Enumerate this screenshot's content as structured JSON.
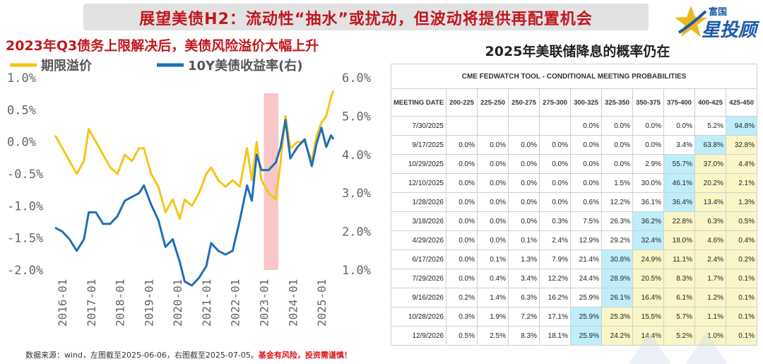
{
  "banner": {
    "title": "展望美债H2：流动性“抽水”或扰动，但波动将提供再配置机会"
  },
  "logo": {
    "small": "富国",
    "big": "星投顾"
  },
  "left_chart": {
    "title": "2023年Q3债务上限解决后，美债风险溢价大幅上升"
  },
  "chart_data": {
    "type": "line",
    "title": "2023年Q3债务上限解决后，美债风险溢价大幅上升",
    "x_ticks": [
      "2016-01",
      "2017-01",
      "2018-01",
      "2019-01",
      "2020-01",
      "2021-01",
      "2022-01",
      "2023-01",
      "2024-01",
      "2025-01"
    ],
    "x_range": [
      "2015-10",
      "2025-06"
    ],
    "y_left": {
      "ticks": [
        "1.0%",
        "0.5%",
        "0.0%",
        "-0.5%",
        "-1.0%",
        "-1.5%",
        "-2.0%"
      ],
      "range": [
        -2.0,
        1.0
      ]
    },
    "y_right": {
      "ticks": [
        "6.0%",
        "5.0%",
        "4.0%",
        "3.0%",
        "2.0%",
        "1.0%"
      ],
      "range": [
        1.0,
        6.0
      ]
    },
    "highlight_band": {
      "from": "2023-01",
      "to": "2023-07",
      "color": "#f7c6c6"
    },
    "colors": {
      "term_premium": "#f5c518",
      "yield_10y": "#1f6fb5"
    },
    "series": [
      {
        "name": "期限溢价",
        "axis": "left",
        "points": [
          [
            "2015-10",
            0.1
          ],
          [
            "2016-01",
            -0.1
          ],
          [
            "2016-04",
            -0.3
          ],
          [
            "2016-07",
            -0.5
          ],
          [
            "2016-10",
            -0.3
          ],
          [
            "2016-12",
            0.2
          ],
          [
            "2017-03",
            0.0
          ],
          [
            "2017-06",
            -0.2
          ],
          [
            "2017-09",
            -0.4
          ],
          [
            "2017-12",
            -0.5
          ],
          [
            "2018-03",
            -0.2
          ],
          [
            "2018-06",
            -0.3
          ],
          [
            "2018-09",
            -0.1
          ],
          [
            "2018-11",
            -0.1
          ],
          [
            "2019-02",
            -0.5
          ],
          [
            "2019-05",
            -0.7
          ],
          [
            "2019-08",
            -1.1
          ],
          [
            "2019-11",
            -0.9
          ],
          [
            "2020-02",
            -1.2
          ],
          [
            "2020-04",
            -0.9
          ],
          [
            "2020-07",
            -1.0
          ],
          [
            "2020-10",
            -0.8
          ],
          [
            "2021-01",
            -0.5
          ],
          [
            "2021-03",
            -0.4
          ],
          [
            "2021-06",
            -0.6
          ],
          [
            "2021-09",
            -0.7
          ],
          [
            "2021-12",
            -0.6
          ],
          [
            "2022-03",
            -0.7
          ],
          [
            "2022-06",
            -0.1
          ],
          [
            "2022-08",
            -0.6
          ],
          [
            "2022-10",
            0.0
          ],
          [
            "2022-12",
            -0.6
          ],
          [
            "2023-03",
            -0.8
          ],
          [
            "2023-06",
            -0.9
          ],
          [
            "2023-08",
            -0.3
          ],
          [
            "2023-10",
            0.4
          ],
          [
            "2023-12",
            -0.1
          ],
          [
            "2024-03",
            0.0
          ],
          [
            "2024-06",
            0.0
          ],
          [
            "2024-09",
            -0.3
          ],
          [
            "2024-11",
            0.1
          ],
          [
            "2025-01",
            0.3
          ],
          [
            "2025-03",
            0.4
          ],
          [
            "2025-05",
            0.7
          ],
          [
            "2025-06",
            0.8
          ]
        ]
      },
      {
        "name": "10Y美债收益率(右)",
        "axis": "right",
        "points": [
          [
            "2015-10",
            2.1
          ],
          [
            "2016-01",
            2.0
          ],
          [
            "2016-04",
            1.8
          ],
          [
            "2016-07",
            1.5
          ],
          [
            "2016-10",
            1.8
          ],
          [
            "2016-12",
            2.5
          ],
          [
            "2017-03",
            2.5
          ],
          [
            "2017-06",
            2.2
          ],
          [
            "2017-09",
            2.2
          ],
          [
            "2017-12",
            2.4
          ],
          [
            "2018-03",
            2.8
          ],
          [
            "2018-06",
            2.9
          ],
          [
            "2018-09",
            3.0
          ],
          [
            "2018-11",
            3.2
          ],
          [
            "2019-02",
            2.7
          ],
          [
            "2019-05",
            2.3
          ],
          [
            "2019-08",
            1.6
          ],
          [
            "2019-11",
            1.8
          ],
          [
            "2020-02",
            1.2
          ],
          [
            "2020-04",
            0.7
          ],
          [
            "2020-07",
            0.6
          ],
          [
            "2020-10",
            0.8
          ],
          [
            "2021-01",
            1.1
          ],
          [
            "2021-03",
            1.7
          ],
          [
            "2021-06",
            1.5
          ],
          [
            "2021-09",
            1.4
          ],
          [
            "2021-12",
            1.5
          ],
          [
            "2022-03",
            2.3
          ],
          [
            "2022-06",
            3.2
          ],
          [
            "2022-08",
            2.8
          ],
          [
            "2022-10",
            4.0
          ],
          [
            "2022-12",
            3.6
          ],
          [
            "2023-03",
            3.6
          ],
          [
            "2023-06",
            3.8
          ],
          [
            "2023-08",
            4.2
          ],
          [
            "2023-10",
            4.9
          ],
          [
            "2023-12",
            3.9
          ],
          [
            "2024-03",
            4.2
          ],
          [
            "2024-06",
            4.4
          ],
          [
            "2024-09",
            3.7
          ],
          [
            "2024-11",
            4.3
          ],
          [
            "2025-01",
            4.7
          ],
          [
            "2025-03",
            4.2
          ],
          [
            "2025-05",
            4.5
          ],
          [
            "2025-06",
            4.4
          ]
        ]
      }
    ]
  },
  "right_table": {
    "title": "2025年美联储降息的概率仍在",
    "tool_title": "CME FEDWATCH TOOL - CONDITIONAL MEETING PROBABILITIES",
    "date_header": "MEETING DATE",
    "columns": [
      "200-225",
      "225-250",
      "250-275",
      "275-300",
      "300-325",
      "325-350",
      "350-375",
      "375-400",
      "400-425",
      "425-450"
    ],
    "rows": [
      {
        "date": "7/30/2025",
        "cells": [
          {
            "v": "",
            "c": "w"
          },
          {
            "v": "",
            "c": "w"
          },
          {
            "v": "",
            "c": "w"
          },
          {
            "v": "",
            "c": "w"
          },
          {
            "v": "0.0%",
            "c": "w"
          },
          {
            "v": "0.0%",
            "c": "w"
          },
          {
            "v": "0.0%",
            "c": "w"
          },
          {
            "v": "0.0%",
            "c": "w"
          },
          {
            "v": "5.2%",
            "c": "w"
          },
          {
            "v": "94.8%",
            "c": "b"
          }
        ]
      },
      {
        "date": "9/17/2025",
        "cells": [
          {
            "v": "0.0%",
            "c": "w"
          },
          {
            "v": "0.0%",
            "c": "w"
          },
          {
            "v": "0.0%",
            "c": "w"
          },
          {
            "v": "0.0%",
            "c": "w"
          },
          {
            "v": "0.0%",
            "c": "w"
          },
          {
            "v": "0.0%",
            "c": "w"
          },
          {
            "v": "0.0%",
            "c": "w"
          },
          {
            "v": "3.4%",
            "c": "w"
          },
          {
            "v": "63.8%",
            "c": "b"
          },
          {
            "v": "32.8%",
            "c": "y"
          }
        ]
      },
      {
        "date": "10/29/2025",
        "cells": [
          {
            "v": "0.0%",
            "c": "w"
          },
          {
            "v": "0.0%",
            "c": "w"
          },
          {
            "v": "0.0%",
            "c": "w"
          },
          {
            "v": "0.0%",
            "c": "w"
          },
          {
            "v": "0.0%",
            "c": "w"
          },
          {
            "v": "0.0%",
            "c": "w"
          },
          {
            "v": "2.9%",
            "c": "w"
          },
          {
            "v": "55.7%",
            "c": "b"
          },
          {
            "v": "37.0%",
            "c": "y"
          },
          {
            "v": "4.4%",
            "c": "y"
          }
        ]
      },
      {
        "date": "12/10/2025",
        "cells": [
          {
            "v": "0.0%",
            "c": "w"
          },
          {
            "v": "0.0%",
            "c": "w"
          },
          {
            "v": "0.0%",
            "c": "w"
          },
          {
            "v": "0.0%",
            "c": "w"
          },
          {
            "v": "0.0%",
            "c": "w"
          },
          {
            "v": "1.5%",
            "c": "w"
          },
          {
            "v": "30.0%",
            "c": "w"
          },
          {
            "v": "46.1%",
            "c": "b"
          },
          {
            "v": "20.2%",
            "c": "y"
          },
          {
            "v": "2.1%",
            "c": "y"
          }
        ]
      },
      {
        "date": "1/28/2026",
        "cells": [
          {
            "v": "0.0%",
            "c": "w"
          },
          {
            "v": "0.0%",
            "c": "w"
          },
          {
            "v": "0.0%",
            "c": "w"
          },
          {
            "v": "0.0%",
            "c": "w"
          },
          {
            "v": "0.6%",
            "c": "w"
          },
          {
            "v": "12.2%",
            "c": "w"
          },
          {
            "v": "36.1%",
            "c": "w"
          },
          {
            "v": "36.4%",
            "c": "b"
          },
          {
            "v": "13.4%",
            "c": "y"
          },
          {
            "v": "1.3%",
            "c": "y"
          }
        ]
      },
      {
        "date": "3/18/2026",
        "cells": [
          {
            "v": "0.0%",
            "c": "w"
          },
          {
            "v": "0.0%",
            "c": "w"
          },
          {
            "v": "0.0%",
            "c": "w"
          },
          {
            "v": "0.3%",
            "c": "w"
          },
          {
            "v": "7.5%",
            "c": "w"
          },
          {
            "v": "26.3%",
            "c": "w"
          },
          {
            "v": "36.2%",
            "c": "b"
          },
          {
            "v": "22.8%",
            "c": "y"
          },
          {
            "v": "6.3%",
            "c": "y"
          },
          {
            "v": "0.5%",
            "c": "y"
          }
        ]
      },
      {
        "date": "4/29/2026",
        "cells": [
          {
            "v": "0.0%",
            "c": "w"
          },
          {
            "v": "0.0%",
            "c": "w"
          },
          {
            "v": "0.1%",
            "c": "w"
          },
          {
            "v": "2.4%",
            "c": "w"
          },
          {
            "v": "12.9%",
            "c": "w"
          },
          {
            "v": "29.2%",
            "c": "w"
          },
          {
            "v": "32.4%",
            "c": "b"
          },
          {
            "v": "18.0%",
            "c": "y"
          },
          {
            "v": "4.6%",
            "c": "y"
          },
          {
            "v": "0.4%",
            "c": "y"
          }
        ]
      },
      {
        "date": "6/17/2026",
        "cells": [
          {
            "v": "0.0%",
            "c": "w"
          },
          {
            "v": "0.1%",
            "c": "w"
          },
          {
            "v": "1.3%",
            "c": "w"
          },
          {
            "v": "7.9%",
            "c": "w"
          },
          {
            "v": "21.4%",
            "c": "w"
          },
          {
            "v": "30.8%",
            "c": "b"
          },
          {
            "v": "24.9%",
            "c": "y"
          },
          {
            "v": "11.1%",
            "c": "y"
          },
          {
            "v": "2.4%",
            "c": "y"
          },
          {
            "v": "0.2%",
            "c": "y"
          }
        ]
      },
      {
        "date": "7/29/2026",
        "cells": [
          {
            "v": "0.0%",
            "c": "w"
          },
          {
            "v": "0.4%",
            "c": "w"
          },
          {
            "v": "3.4%",
            "c": "w"
          },
          {
            "v": "12.2%",
            "c": "w"
          },
          {
            "v": "24.4%",
            "c": "w"
          },
          {
            "v": "28.9%",
            "c": "b"
          },
          {
            "v": "20.5%",
            "c": "y"
          },
          {
            "v": "8.3%",
            "c": "y"
          },
          {
            "v": "1.7%",
            "c": "y"
          },
          {
            "v": "0.1%",
            "c": "y"
          }
        ]
      },
      {
        "date": "9/16/2026",
        "cells": [
          {
            "v": "0.2%",
            "c": "w"
          },
          {
            "v": "1.4%",
            "c": "w"
          },
          {
            "v": "6.3%",
            "c": "w"
          },
          {
            "v": "16.2%",
            "c": "w"
          },
          {
            "v": "25.9%",
            "c": "w"
          },
          {
            "v": "26.1%",
            "c": "b"
          },
          {
            "v": "16.4%",
            "c": "y"
          },
          {
            "v": "6.1%",
            "c": "y"
          },
          {
            "v": "1.2%",
            "c": "y"
          },
          {
            "v": "0.1%",
            "c": "y"
          }
        ]
      },
      {
        "date": "10/28/2026",
        "cells": [
          {
            "v": "0.3%",
            "c": "w"
          },
          {
            "v": "1.9%",
            "c": "w"
          },
          {
            "v": "7.2%",
            "c": "w"
          },
          {
            "v": "17.1%",
            "c": "w"
          },
          {
            "v": "25.9%",
            "c": "b"
          },
          {
            "v": "25.3%",
            "c": "y"
          },
          {
            "v": "15.5%",
            "c": "y"
          },
          {
            "v": "5.7%",
            "c": "y"
          },
          {
            "v": "1.1%",
            "c": "y"
          },
          {
            "v": "0.1%",
            "c": "y"
          }
        ]
      },
      {
        "date": "12/9/2026",
        "cells": [
          {
            "v": "0.5%",
            "c": "w"
          },
          {
            "v": "2.5%",
            "c": "w"
          },
          {
            "v": "8.3%",
            "c": "w"
          },
          {
            "v": "18.1%",
            "c": "w"
          },
          {
            "v": "25.9%",
            "c": "b"
          },
          {
            "v": "24.2%",
            "c": "y"
          },
          {
            "v": "14.4%",
            "c": "y"
          },
          {
            "v": "5.2%",
            "c": "y"
          },
          {
            "v": "1.0%",
            "c": "y"
          },
          {
            "v": "0.1%",
            "c": "y"
          }
        ]
      }
    ]
  },
  "footer": {
    "source": "数据来源：wind，左图截至2025-06-06，右图截至2025-07-05。",
    "warning": "基金有风险，投资需谨慎！"
  }
}
